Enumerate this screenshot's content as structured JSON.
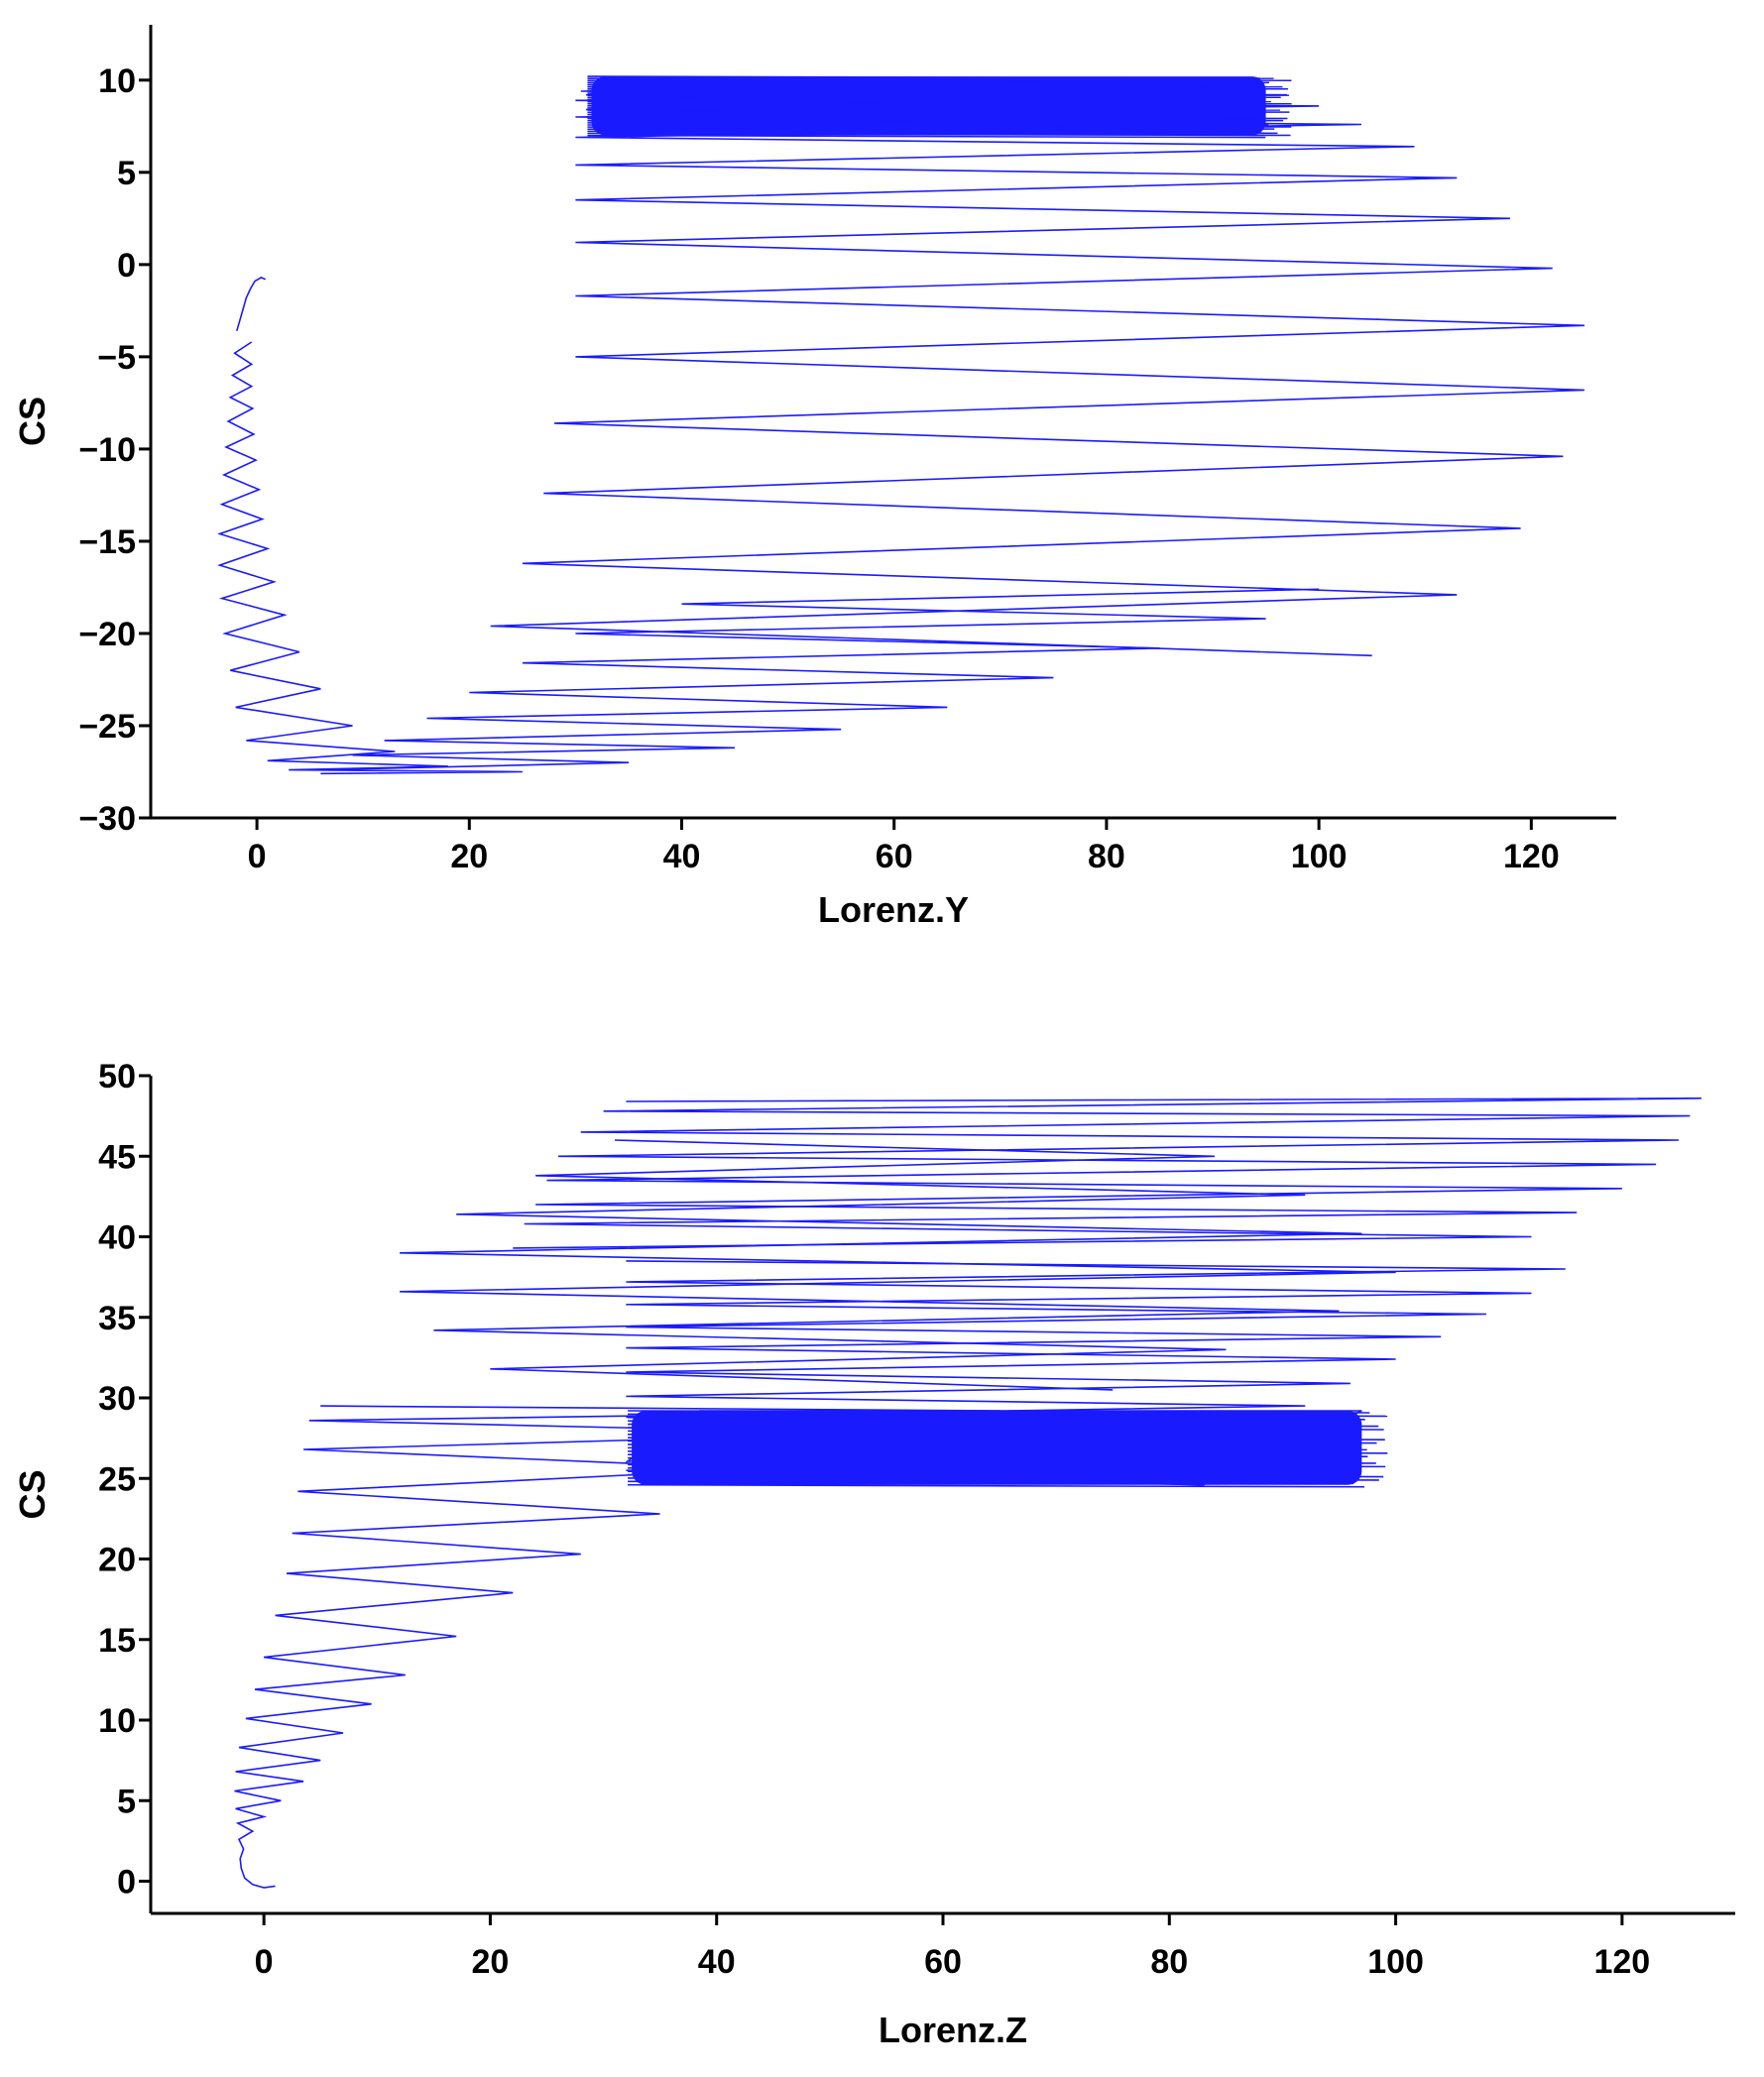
{
  "chart_data": [
    {
      "type": "line",
      "xlabel": "Lorenz.Y",
      "ylabel": "CS",
      "xlim": [
        -10,
        128
      ],
      "ylim": [
        -30,
        13
      ],
      "xticks": [
        0,
        20,
        40,
        60,
        80,
        100,
        120
      ],
      "yticks": [
        10,
        5,
        0,
        -5,
        -10,
        -15,
        -20,
        -25,
        -30
      ],
      "color": "#1a1aff",
      "grid": false,
      "series": [
        {
          "segments": [
            {
              "x": [
                0.8,
                0.4,
                -0.2,
                -0.6,
                -1.0,
                -1.3,
                -1.6,
                -1.9
              ],
              "y": [
                -0.8,
                -0.7,
                -0.9,
                -1.3,
                -1.8,
                -2.4,
                -3.0,
                -3.6
              ]
            },
            {
              "x": [
                -0.5,
                -2.1,
                -0.5,
                -2.3,
                -0.5,
                -2.5,
                -0.4,
                -2.7,
                -0.3,
                -2.9,
                -0.1,
                -3.1,
                0.2,
                -3.3,
                0.5,
                -3.5,
                1.0,
                -3.5,
                1.6,
                -3.3,
                2.6,
                -3.0,
                4.0,
                -2.5,
                6.0,
                -2.0,
                9.0,
                -1.0,
                13.0,
                1.0,
                18.0,
                3.0,
                25.0,
                6.0
              ],
              "y": [
                -4.2,
                -4.8,
                -5.4,
                -6.0,
                -6.6,
                -7.2,
                -7.8,
                -8.5,
                -9.2,
                -9.9,
                -10.6,
                -11.4,
                -12.2,
                -13.0,
                -13.8,
                -14.6,
                -15.4,
                -16.3,
                -17.2,
                -18.1,
                -19.0,
                -20.0,
                -21.0,
                -22.0,
                -23.0,
                -24.0,
                -25.0,
                -25.8,
                -26.4,
                -26.9,
                -27.2,
                -27.4,
                -27.5,
                -27.6
              ]
            },
            {
              "x": [
                6.0,
                35.0,
                9.0,
                45.0,
                12.0,
                55.0,
                16.0,
                65.0,
                20.0,
                75.0,
                25.0,
                85.0,
                30.0,
                95.0,
                40.0,
                100.0
              ],
              "y": [
                -27.4,
                -27.0,
                -26.6,
                -26.2,
                -25.8,
                -25.2,
                -24.6,
                -24.0,
                -23.2,
                -22.4,
                -21.6,
                -20.8,
                -20.0,
                -19.2,
                -18.4,
                -17.6
              ]
            },
            {
              "x": [
                105.0,
                22.0,
                113.0,
                25.0,
                119.0,
                27.0,
                123.0,
                28.0,
                125.0,
                30.0,
                125.0,
                30.0,
                122.0,
                30.0,
                118.0,
                30.0,
                113.0,
                30.0,
                109.0,
                30.0,
                104.0,
                30.0,
                100.0,
                30.0,
                97.0,
                30.5,
                94.0,
                31.0,
                92.0,
                31.0
              ],
              "y": [
                -21.2,
                -19.6,
                -17.9,
                -16.2,
                -14.3,
                -12.4,
                -10.4,
                -8.6,
                -6.8,
                -5.0,
                -3.3,
                -1.7,
                -0.2,
                1.2,
                2.5,
                3.5,
                4.7,
                5.4,
                6.4,
                6.9,
                7.6,
                8.0,
                8.6,
                8.9,
                9.2,
                9.4,
                9.6,
                9.2,
                8.8,
                8.4
              ]
            }
          ],
          "band": {
            "x_min": 31.5,
            "x_max": 95.0,
            "y_min": 7.0,
            "y_max": 10.2,
            "lines": 28
          }
        }
      ]
    },
    {
      "type": "line",
      "xlabel": "Lorenz.Z",
      "ylabel": "CS",
      "xlim": [
        -10,
        130
      ],
      "ylim": [
        -2,
        50
      ],
      "xticks": [
        0,
        20,
        40,
        60,
        80,
        100,
        120
      ],
      "yticks": [
        50,
        45,
        40,
        35,
        30,
        25,
        20,
        15,
        10,
        5,
        0
      ],
      "color": "#1a1aff",
      "grid": false,
      "series": [
        {
          "segments": [
            {
              "x": [
                1.0,
                0.0,
                -1.0,
                -1.7,
                -2.0,
                -2.1,
                -1.8,
                -2.2,
                -1.0,
                -2.3,
                0.0,
                -2.5,
                1.5,
                -2.6,
                3.5,
                -2.5,
                5.0,
                -2.2,
                7.0,
                -1.6,
                9.5,
                -0.8,
                12.5,
                0.0,
                17.0,
                1.0,
                22.0,
                2.0,
                28.0,
                2.5,
                35.0,
                3.0,
                43.5,
                3.5,
                53.5,
                4.0,
                65.0,
                5.0
              ],
              "y": [
                -0.3,
                -0.4,
                -0.2,
                0.2,
                0.8,
                1.4,
                2.0,
                2.6,
                3.1,
                3.6,
                4.0,
                4.5,
                5.0,
                5.6,
                6.2,
                6.8,
                7.5,
                8.3,
                9.2,
                10.1,
                11.0,
                11.9,
                12.8,
                13.9,
                15.2,
                16.5,
                17.9,
                19.1,
                20.3,
                21.6,
                22.8,
                24.2,
                25.6,
                26.8,
                27.8,
                28.6,
                29.2,
                29.5
              ]
            },
            {
              "x": [
                75.0,
                20.0,
                85.0,
                15.0,
                95.0,
                12.0,
                100.0,
                12.0,
                97.0,
                17.0,
                92.0,
                24.0,
                84.0,
                31.0
              ],
              "y": [
                30.5,
                31.8,
                33.0,
                34.2,
                35.4,
                36.6,
                37.8,
                39.0,
                40.2,
                41.4,
                42.6,
                43.8,
                45.0,
                46.0
              ]
            },
            {
              "x": [
                32.0,
                127.0,
                30.0,
                126.0,
                28.0,
                125.0,
                26.0,
                123.0,
                25.0,
                120.0,
                24.0,
                116.0,
                23.0,
                112.0,
                22.0
              ],
              "y": [
                48.4,
                48.6,
                47.8,
                47.5,
                46.5,
                46.0,
                45.0,
                44.5,
                43.5,
                43.0,
                42.0,
                41.5,
                40.8,
                40.0,
                39.3
              ]
            },
            {
              "x": [
                32.0,
                115.0,
                32.0,
                112.0,
                32.0,
                108.0,
                32.0,
                104.0,
                32.0,
                100.0,
                32.0,
                96.0,
                32.0,
                92.0,
                32.0
              ],
              "y": [
                38.5,
                38.0,
                37.2,
                36.5,
                35.8,
                35.2,
                34.4,
                33.8,
                33.1,
                32.4,
                31.6,
                30.9,
                30.1,
                29.5,
                28.8
              ]
            },
            {
              "x": [
                32.0,
                83.0,
                97.0,
                38.5,
                32.0
              ],
              "y": [
                25.5,
                24.6,
                29.2,
                29.2,
                26.0
              ]
            }
          ],
          "band": {
            "x_min": 32.5,
            "x_max": 97.0,
            "y_min": 24.6,
            "y_max": 29.2,
            "lines": 22
          }
        }
      ]
    }
  ]
}
